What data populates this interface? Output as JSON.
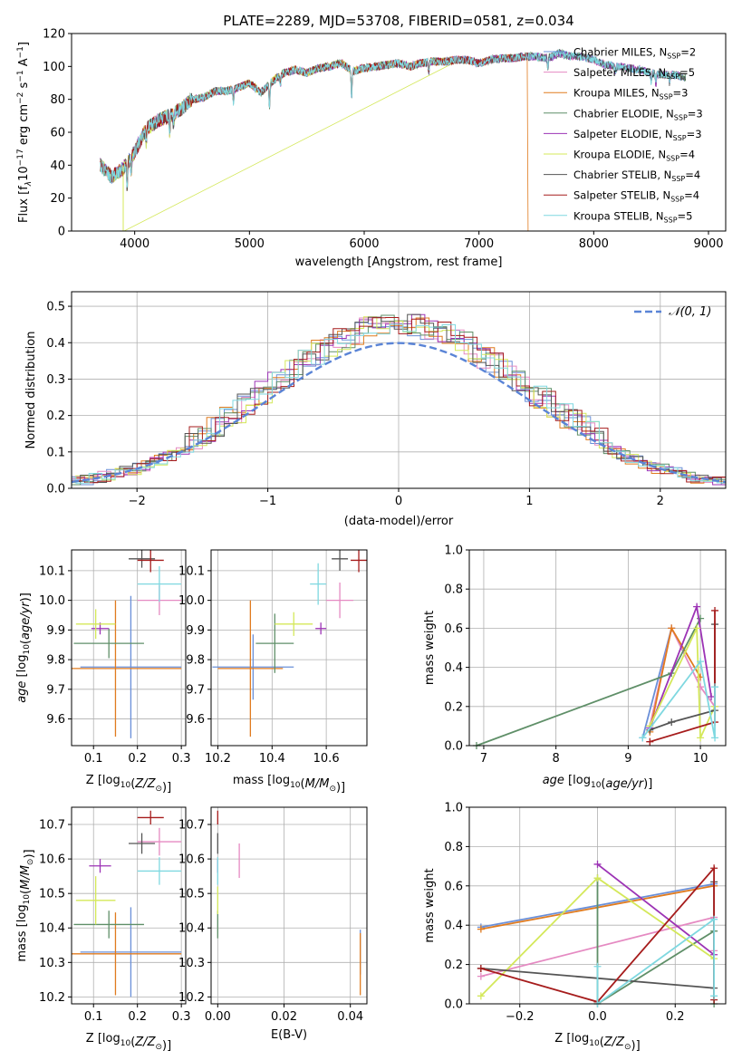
{
  "page_title": "PLATE=2289, MJD=53708, FIBERID=0581, z=0.034",
  "legend_series": [
    {
      "name": "Chabrier MILES, N",
      "sub": "SSP",
      "n": "=2",
      "color": "#6a8fd8"
    },
    {
      "name": "Salpeter MILES, N",
      "sub": "SSP",
      "n": "=5",
      "color": "#e58ac2"
    },
    {
      "name": "Kroupa MILES, N",
      "sub": "SSP",
      "n": "=3",
      "color": "#e07b1f"
    },
    {
      "name": "Chabrier ELODIE, N",
      "sub": "SSP",
      "n": "=3",
      "color": "#5f8f68"
    },
    {
      "name": "Salpeter ELODIE, N",
      "sub": "SSP",
      "n": "=3",
      "color": "#9c33b5"
    },
    {
      "name": "Kroupa ELODIE, N",
      "sub": "SSP",
      "n": "=4",
      "color": "#d4e85a"
    },
    {
      "name": "Chabrier STELIB, N",
      "sub": "SSP",
      "n": "=4",
      "color": "#555555"
    },
    {
      "name": "Salpeter STELIB, N",
      "sub": "SSP",
      "n": "=4",
      "color": "#a61c1c"
    },
    {
      "name": "Kroupa STELIB, N",
      "sub": "SSP",
      "n": "=5",
      "color": "#7fd8e0"
    }
  ],
  "chart_data": [
    {
      "id": "spectrum",
      "type": "line",
      "xlabel": "wavelength [Angstrom, rest frame]",
      "ylabel": "Flux [f",
      "ylabel_sub": "λ",
      "ylabel_rest": "10",
      "ylabel_exp": "−17",
      "ylabel_unit": " erg cm",
      "ylabel_exp2": "−2",
      "ylabel_s": " s",
      "ylabel_exp3": "−1",
      "ylabel_A": " A",
      "ylabel_exp4": "−1",
      "ylabel_end": "]",
      "xlim": [
        3450,
        9150
      ],
      "ylim": [
        0,
        120
      ],
      "xticks": [
        4000,
        5000,
        6000,
        7000,
        8000,
        9000
      ],
      "yticks": [
        0,
        20,
        40,
        60,
        80,
        100,
        120
      ],
      "x": [
        3700,
        3800,
        3900,
        4000,
        4100,
        4200,
        4300,
        4400,
        4500,
        4600,
        4700,
        4800,
        4900,
        5000,
        5100,
        5200,
        5300,
        5400,
        5500,
        5600,
        5700,
        5800,
        5900,
        6000,
        6100,
        6200,
        6300,
        6400,
        6500,
        6600,
        6700,
        6800,
        6900,
        7000,
        7100,
        7200,
        7300,
        7400,
        7500,
        7600,
        7700,
        7800,
        7900,
        8000,
        8100,
        8200,
        8300,
        8400,
        8500,
        8600,
        8700,
        8800,
        8900
      ],
      "y": [
        40,
        33,
        38,
        48,
        62,
        67,
        70,
        74,
        80,
        81,
        85,
        85,
        87,
        90,
        84,
        91,
        96,
        98,
        96,
        99,
        100,
        102,
        97,
        99,
        100,
        101,
        102,
        100,
        102,
        103,
        103,
        104,
        104,
        102,
        104,
        105,
        105,
        106,
        106,
        105,
        108,
        106,
        106,
        104,
        101,
        100,
        99,
        98,
        96,
        95,
        95,
        93,
        89
      ],
      "dropouts": [
        {
          "series": "Kroupa ELODIE",
          "x": 3900,
          "to": 0
        },
        {
          "series": "Kroupa ELODIE",
          "x": 6790,
          "to": 0
        },
        {
          "series": "Kroupa MILES",
          "x": 7420,
          "to": 0
        }
      ]
    },
    {
      "id": "residuals",
      "type": "histogram",
      "xlabel": "(data-model)/error",
      "ylabel": "Normed distribution",
      "xlim": [
        -2.5,
        2.5
      ],
      "ylim": [
        0,
        0.54
      ],
      "xticks": [
        -2,
        -1,
        0,
        1,
        2
      ],
      "yticks": [
        0.0,
        0.1,
        0.2,
        0.3,
        0.4,
        0.5
      ],
      "legend": "𝒩(0, 1)",
      "bin_width": 0.1
    },
    {
      "id": "age_vs_Z",
      "type": "scatter",
      "xlabel": "Z [log10(Z/Z⊙)]",
      "ylabel": "age [log10(age/yr)]",
      "xlim": [
        0.05,
        0.31
      ],
      "ylim": [
        9.51,
        10.17
      ],
      "xticks": [
        0.1,
        0.2,
        0.3
      ],
      "yticks": [
        9.6,
        9.7,
        9.8,
        9.9,
        10.0,
        10.1
      ],
      "points": [
        {
          "series": "Chabrier MILES",
          "x": 0.185,
          "y": 9.775,
          "dx": 0.115,
          "dy": 0.24
        },
        {
          "series": "Salpeter MILES",
          "x": 0.25,
          "y": 10.0,
          "dx": 0.05,
          "dy": 0.05
        },
        {
          "series": "Kroupa MILES",
          "x": 0.15,
          "y": 9.77,
          "dx": 0.15,
          "dy": 0.23
        },
        {
          "series": "Chabrier ELODIE",
          "x": 0.135,
          "y": 9.855,
          "dx": 0.08,
          "dy": 0.05
        },
        {
          "series": "Salpeter ELODIE",
          "x": 0.115,
          "y": 9.905,
          "dx": 0.02,
          "dy": 0.02
        },
        {
          "series": "Kroupa ELODIE",
          "x": 0.105,
          "y": 9.92,
          "dx": 0.045,
          "dy": 0.05
        },
        {
          "series": "Chabrier STELIB",
          "x": 0.21,
          "y": 10.14,
          "dx": 0.03,
          "dy": 0.03
        },
        {
          "series": "Salpeter STELIB",
          "x": 0.23,
          "y": 10.135,
          "dx": 0.03,
          "dy": 0.04
        },
        {
          "series": "Kroupa STELIB",
          "x": 0.25,
          "y": 10.055,
          "dx": 0.05,
          "dy": 0.06
        }
      ]
    },
    {
      "id": "age_vs_mass",
      "type": "scatter",
      "xlabel": "mass [log10(M/M⊙)]",
      "ylabel": "",
      "xlim": [
        10.175,
        10.75
      ],
      "ylim": [
        9.51,
        10.17
      ],
      "xticks": [
        10.2,
        10.4,
        10.6
      ],
      "yticks": [
        9.6,
        9.7,
        9.8,
        9.9,
        10.0,
        10.1
      ],
      "points": [
        {
          "series": "Chabrier MILES",
          "x": 10.33,
          "y": 9.775,
          "dx": 0.15,
          "dy": 0.11
        },
        {
          "series": "Salpeter MILES",
          "x": 10.65,
          "y": 10.0,
          "dx": 0.05,
          "dy": 0.06
        },
        {
          "series": "Kroupa MILES",
          "x": 10.32,
          "y": 9.77,
          "dx": 0.12,
          "dy": 0.23
        },
        {
          "series": "Chabrier ELODIE",
          "x": 10.41,
          "y": 9.855,
          "dx": 0.07,
          "dy": 0.1
        },
        {
          "series": "Salpeter ELODIE",
          "x": 10.58,
          "y": 9.905,
          "dx": 0.02,
          "dy": 0.02
        },
        {
          "series": "Kroupa ELODIE",
          "x": 10.48,
          "y": 9.92,
          "dx": 0.07,
          "dy": 0.04
        },
        {
          "series": "Chabrier STELIB",
          "x": 10.65,
          "y": 10.14,
          "dx": 0.03,
          "dy": 0.04
        },
        {
          "series": "Salpeter STELIB",
          "x": 10.72,
          "y": 10.135,
          "dx": 0.03,
          "dy": 0.04
        },
        {
          "series": "Kroupa STELIB",
          "x": 10.57,
          "y": 10.055,
          "dx": 0.03,
          "dy": 0.07
        }
      ]
    },
    {
      "id": "mass_weight_vs_age",
      "type": "line",
      "xlabel": "age [log10(age/yr)]",
      "ylabel": "mass weight",
      "xlim": [
        6.8,
        10.35
      ],
      "ylim": [
        0,
        1
      ],
      "xticks": [
        7,
        8,
        9,
        10
      ],
      "yticks": [
        0.0,
        0.2,
        0.4,
        0.6,
        0.8,
        1.0
      ],
      "series": [
        {
          "name": "Chabrier MILES",
          "x": [
            9.2,
            9.6
          ],
          "y": [
            0.04,
            0.6
          ]
        },
        {
          "name": "Salpeter MILES",
          "x": [
            9.3,
            9.6,
            10.0,
            10.2
          ],
          "y": [
            0.1,
            0.6,
            0.3,
            0.2
          ]
        },
        {
          "name": "Kroupa MILES",
          "x": [
            9.3,
            9.6,
            10.0
          ],
          "y": [
            0.07,
            0.6,
            0.35
          ]
        },
        {
          "name": "Chabrier ELODIE",
          "x": [
            6.9,
            9.6,
            10.0
          ],
          "y": [
            0.0,
            0.37,
            0.65
          ]
        },
        {
          "name": "Salpeter ELODIE",
          "x": [
            9.3,
            9.95,
            10.15
          ],
          "y": [
            0.09,
            0.71,
            0.25
          ]
        },
        {
          "name": "Kroupa ELODIE",
          "x": [
            9.3,
            9.95,
            10.0,
            10.2
          ],
          "y": [
            0.1,
            0.6,
            0.04,
            0.2
          ]
        },
        {
          "name": "Chabrier STELIB",
          "x": [
            9.3,
            9.6,
            10.2,
            10.2
          ],
          "y": [
            0.08,
            0.12,
            0.18,
            0.62
          ]
        },
        {
          "name": "Salpeter STELIB",
          "x": [
            9.3,
            10.2,
            10.2
          ],
          "y": [
            0.02,
            0.12,
            0.69
          ]
        },
        {
          "name": "Kroupa STELIB",
          "x": [
            9.2,
            10.0,
            10.2,
            10.2
          ],
          "y": [
            0.04,
            0.43,
            0.04,
            0.3
          ]
        }
      ]
    },
    {
      "id": "mass_vs_Z",
      "type": "scatter",
      "xlabel": "Z [log10(Z/Z⊙)]",
      "ylabel": "mass [log10(M/M⊙)]",
      "xlim": [
        0.05,
        0.31
      ],
      "ylim": [
        10.18,
        10.75
      ],
      "xticks": [
        0.1,
        0.2,
        0.3
      ],
      "yticks": [
        10.2,
        10.3,
        10.4,
        10.5,
        10.6,
        10.7
      ],
      "points": [
        {
          "series": "Chabrier MILES",
          "x": 0.185,
          "y": 10.33,
          "dx": 0.115,
          "dy": 0.13
        },
        {
          "series": "Salpeter MILES",
          "x": 0.25,
          "y": 10.65,
          "dx": 0.05,
          "dy": 0.04
        },
        {
          "series": "Kroupa MILES",
          "x": 0.15,
          "y": 10.325,
          "dx": 0.15,
          "dy": 0.12
        },
        {
          "series": "Chabrier ELODIE",
          "x": 0.135,
          "y": 10.41,
          "dx": 0.08,
          "dy": 0.04
        },
        {
          "series": "Salpeter ELODIE",
          "x": 0.115,
          "y": 10.58,
          "dx": 0.025,
          "dy": 0.02
        },
        {
          "series": "Kroupa ELODIE",
          "x": 0.105,
          "y": 10.48,
          "dx": 0.045,
          "dy": 0.07
        },
        {
          "series": "Chabrier STELIB",
          "x": 0.21,
          "y": 10.645,
          "dx": 0.03,
          "dy": 0.03
        },
        {
          "series": "Salpeter STELIB",
          "x": 0.23,
          "y": 10.72,
          "dx": 0.03,
          "dy": 0.02
        },
        {
          "series": "Kroupa STELIB",
          "x": 0.25,
          "y": 10.565,
          "dx": 0.05,
          "dy": 0.04
        }
      ]
    },
    {
      "id": "mass_vs_EBV",
      "type": "scatter",
      "xlabel": "E(B-V)",
      "ylabel": "",
      "xlim": [
        -0.002,
        0.045
      ],
      "ylim": [
        10.18,
        10.75
      ],
      "xticks": [
        0.0,
        0.02,
        0.04
      ],
      "yticks": [
        10.2,
        10.3,
        10.4,
        10.5,
        10.6,
        10.7
      ],
      "points": [
        {
          "series": "Chabrier MILES",
          "x": 0.043,
          "y": 10.33,
          "dx": 0.0,
          "dy": 0.065
        },
        {
          "series": "Salpeter MILES",
          "x": 0.0065,
          "y": 10.595,
          "dx": 0.0,
          "dy": 0.05
        },
        {
          "series": "Kroupa MILES",
          "x": 0.043,
          "y": 10.295,
          "dx": 0.0,
          "dy": 0.09
        },
        {
          "series": "Chabrier ELODIE",
          "x": 0.0,
          "y": 10.41,
          "dx": 0.0,
          "dy": 0.04
        },
        {
          "series": "Salpeter ELODIE",
          "x": 0.0,
          "y": 10.58,
          "dx": 0.0,
          "dy": 0.02
        },
        {
          "series": "Kroupa ELODIE",
          "x": 0.0,
          "y": 10.48,
          "dx": 0.0,
          "dy": 0.04
        },
        {
          "series": "Chabrier STELIB",
          "x": 0.0,
          "y": 10.645,
          "dx": 0.0,
          "dy": 0.03
        },
        {
          "series": "Salpeter STELIB",
          "x": 0.0,
          "y": 10.72,
          "dx": 0.0,
          "dy": 0.02
        },
        {
          "series": "Kroupa STELIB",
          "x": 0.0,
          "y": 10.565,
          "dx": 0.0,
          "dy": 0.04
        }
      ]
    },
    {
      "id": "mass_weight_vs_Z",
      "type": "line",
      "xlabel": "Z [log10(Z/Z⊙)]",
      "ylabel": "mass weight",
      "xlim": [
        -0.33,
        0.33
      ],
      "ylim": [
        0,
        1
      ],
      "xticks": [
        -0.2,
        0.0,
        0.2
      ],
      "yticks": [
        0.0,
        0.2,
        0.4,
        0.6,
        0.8,
        1.0
      ],
      "xtick_labels": [
        "−0.2",
        "0.0",
        "0.2"
      ],
      "series": [
        {
          "name": "Chabrier MILES",
          "x": [
            -0.3,
            0.3
          ],
          "y": [
            0.39,
            0.61
          ]
        },
        {
          "name": "Salpeter MILES",
          "x": [
            -0.3,
            0.3,
            0.3
          ],
          "y": [
            0.14,
            0.44,
            0.27
          ]
        },
        {
          "name": "Kroupa MILES",
          "x": [
            -0.3,
            0.3
          ],
          "y": [
            0.38,
            0.6
          ]
        },
        {
          "name": "Chabrier ELODIE",
          "x": [
            0.0,
            0.0,
            0.3,
            0.3
          ],
          "y": [
            0.64,
            0.0,
            0.37,
            0.0
          ]
        },
        {
          "name": "Salpeter ELODIE",
          "x": [
            0.0,
            0.3
          ],
          "y": [
            0.71,
            0.25
          ]
        },
        {
          "name": "Kroupa ELODIE",
          "x": [
            -0.3,
            0.0,
            0.3
          ],
          "y": [
            0.04,
            0.64,
            0.23
          ]
        },
        {
          "name": "Chabrier STELIB",
          "x": [
            -0.3,
            0.3,
            0.3
          ],
          "y": [
            0.18,
            0.08,
            0.62
          ]
        },
        {
          "name": "Salpeter STELIB",
          "x": [
            -0.3,
            0.0,
            0.3,
            0.3
          ],
          "y": [
            0.18,
            0.01,
            0.69,
            0.02
          ]
        },
        {
          "name": "Kroupa STELIB",
          "x": [
            0.0,
            0.0,
            0.3,
            0.3
          ],
          "y": [
            0.19,
            0.0,
            0.43,
            0.04
          ]
        }
      ]
    }
  ]
}
